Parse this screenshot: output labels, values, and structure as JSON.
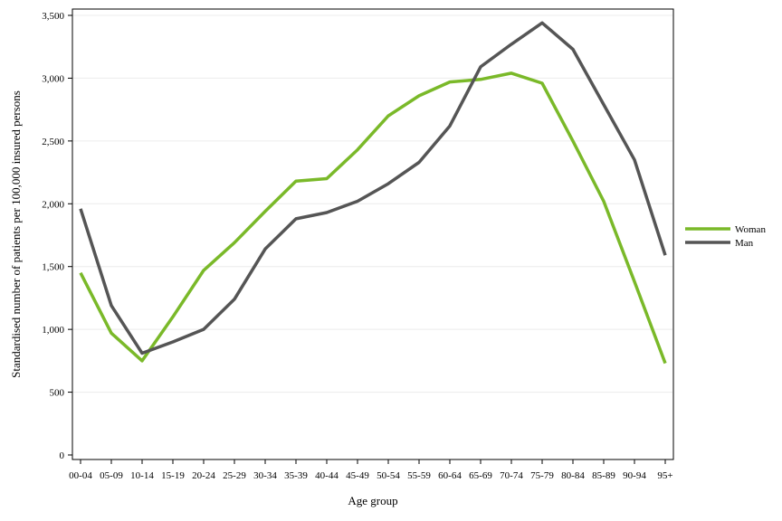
{
  "chart_data": {
    "type": "line",
    "title": "",
    "xlabel": "Age group",
    "ylabel": "Standardised number of patients per 100,000 insured persons",
    "categories": [
      "00-04",
      "05-09",
      "10-14",
      "15-19",
      "20-24",
      "25-29",
      "30-34",
      "35-39",
      "40-44",
      "45-49",
      "50-54",
      "55-59",
      "60-64",
      "65-69",
      "70-74",
      "75-79",
      "80-84",
      "85-89",
      "90-94",
      "95+"
    ],
    "ylim": [
      0,
      3500
    ],
    "yticks": [
      0,
      500,
      1000,
      1500,
      2000,
      2500,
      3000,
      3500
    ],
    "ytick_labels": [
      "0",
      "500",
      "1,000",
      "1,500",
      "2,000",
      "2,500",
      "3,000",
      "3,500"
    ],
    "grid": true,
    "legend_position": "right",
    "series": [
      {
        "name": "Woman",
        "color": "#7ab929",
        "values": [
          1450,
          970,
          750,
          1100,
          1470,
          1690,
          1940,
          2180,
          2200,
          2430,
          2700,
          2860,
          2970,
          2990,
          3040,
          2960,
          2500,
          2020,
          1380,
          730
        ]
      },
      {
        "name": "Man",
        "color": "#555555",
        "values": [
          1960,
          1190,
          810,
          900,
          1000,
          1240,
          1640,
          1880,
          1930,
          2020,
          2160,
          2330,
          2620,
          3090,
          3270,
          3440,
          3230,
          2790,
          2350,
          1590
        ]
      }
    ]
  }
}
